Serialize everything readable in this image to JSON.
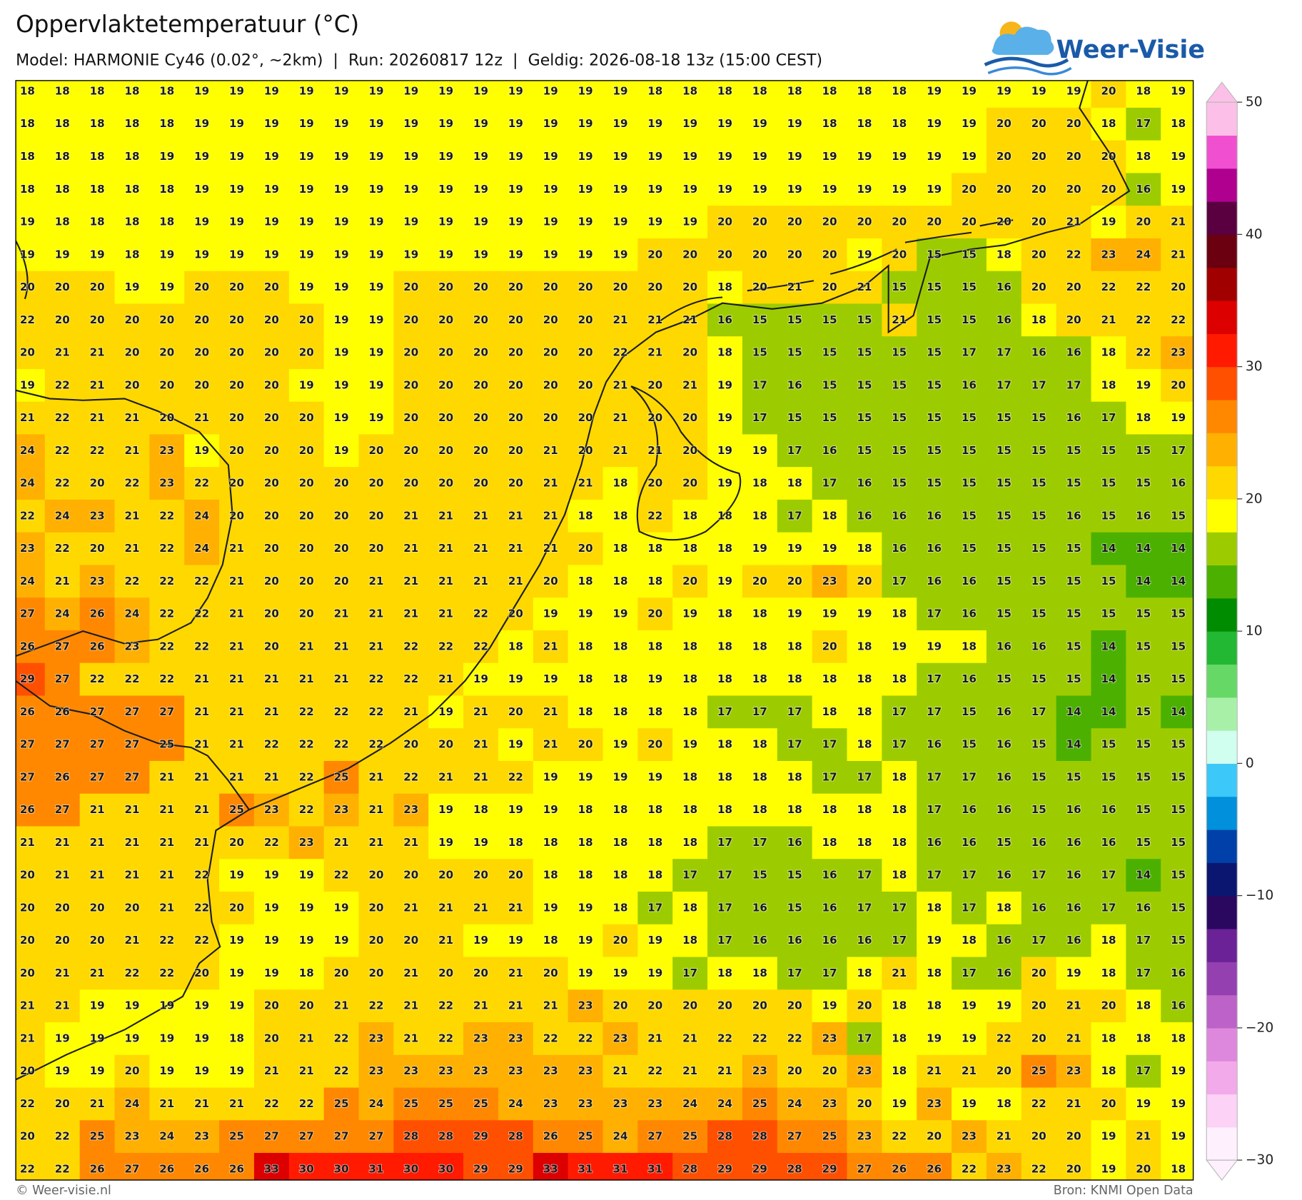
{
  "title": "Oppervlaktetemperatuur (°C)",
  "subtitle": "Model: HARMONIE Cy46 (0.02°, ~2km)  |  Run: 20260817 12z  |  Geldig: 2026-08-18 13z (15:00 CEST)",
  "logo": "Weer-Visie",
  "footer_left": "© Weer-visie.nl",
  "footer_right": "Bron: KNMI Open Data",
  "grid": {
    "values": [
      [
        18,
        18,
        18,
        18,
        18,
        19,
        19,
        19,
        19,
        19,
        19,
        19,
        19,
        19,
        19,
        19,
        19,
        19,
        18,
        18,
        18,
        18,
        18,
        18,
        18,
        18,
        19,
        19,
        19,
        19,
        19,
        20,
        18,
        19
      ],
      [
        18,
        18,
        18,
        18,
        18,
        19,
        19,
        19,
        19,
        19,
        19,
        19,
        19,
        19,
        19,
        19,
        19,
        19,
        19,
        19,
        19,
        19,
        19,
        18,
        18,
        18,
        19,
        19,
        20,
        20,
        20,
        18,
        17,
        18
      ],
      [
        18,
        18,
        18,
        18,
        19,
        19,
        19,
        19,
        19,
        19,
        19,
        19,
        19,
        19,
        19,
        19,
        19,
        19,
        19,
        19,
        19,
        19,
        19,
        19,
        19,
        19,
        19,
        19,
        20,
        20,
        20,
        20,
        18,
        19
      ],
      [
        18,
        18,
        18,
        18,
        18,
        19,
        19,
        19,
        19,
        19,
        19,
        19,
        19,
        19,
        19,
        19,
        19,
        19,
        19,
        19,
        19,
        19,
        19,
        19,
        19,
        19,
        19,
        20,
        20,
        20,
        20,
        20,
        16,
        19
      ],
      [
        19,
        18,
        18,
        18,
        18,
        19,
        19,
        19,
        19,
        19,
        19,
        19,
        19,
        19,
        19,
        19,
        19,
        19,
        19,
        19,
        20,
        20,
        20,
        20,
        20,
        20,
        20,
        20,
        20,
        20,
        21,
        19,
        20,
        21
      ],
      [
        19,
        19,
        19,
        18,
        19,
        19,
        19,
        19,
        19,
        19,
        19,
        19,
        19,
        19,
        19,
        19,
        19,
        19,
        20,
        20,
        20,
        20,
        20,
        20,
        19,
        20,
        15,
        15,
        18,
        20,
        22,
        23,
        24,
        21
      ],
      [
        20,
        20,
        20,
        19,
        19,
        20,
        20,
        20,
        19,
        19,
        19,
        20,
        20,
        20,
        20,
        20,
        20,
        20,
        20,
        20,
        18,
        20,
        21,
        20,
        21,
        15,
        15,
        15,
        16,
        20,
        20,
        22,
        22,
        20
      ],
      [
        22,
        20,
        20,
        20,
        20,
        20,
        20,
        20,
        20,
        19,
        19,
        20,
        20,
        20,
        20,
        20,
        20,
        21,
        21,
        21,
        16,
        15,
        15,
        15,
        15,
        21,
        15,
        15,
        16,
        18,
        20,
        21,
        22,
        22
      ],
      [
        20,
        21,
        21,
        20,
        20,
        20,
        20,
        20,
        20,
        19,
        19,
        20,
        20,
        20,
        20,
        20,
        20,
        22,
        21,
        20,
        18,
        15,
        15,
        15,
        15,
        15,
        15,
        17,
        17,
        16,
        16,
        18,
        22,
        23
      ],
      [
        19,
        22,
        21,
        20,
        20,
        20,
        20,
        20,
        19,
        19,
        19,
        20,
        20,
        20,
        20,
        20,
        20,
        21,
        20,
        21,
        19,
        17,
        16,
        15,
        15,
        15,
        15,
        16,
        17,
        17,
        17,
        18,
        19,
        20
      ],
      [
        21,
        22,
        21,
        21,
        20,
        21,
        20,
        20,
        20,
        19,
        19,
        20,
        20,
        20,
        20,
        20,
        20,
        21,
        20,
        20,
        19,
        17,
        15,
        15,
        15,
        15,
        15,
        15,
        15,
        15,
        16,
        17,
        18,
        19
      ],
      [
        24,
        22,
        22,
        21,
        23,
        19,
        20,
        20,
        20,
        19,
        20,
        20,
        20,
        20,
        20,
        21,
        20,
        21,
        21,
        20,
        19,
        19,
        17,
        16,
        15,
        15,
        15,
        15,
        15,
        15,
        15,
        15,
        15,
        17
      ],
      [
        24,
        22,
        20,
        22,
        23,
        22,
        20,
        20,
        20,
        20,
        20,
        20,
        20,
        20,
        20,
        21,
        21,
        18,
        20,
        20,
        19,
        18,
        18,
        17,
        16,
        15,
        15,
        15,
        15,
        15,
        15,
        15,
        15,
        16
      ],
      [
        22,
        24,
        23,
        21,
        22,
        24,
        20,
        20,
        20,
        20,
        20,
        21,
        21,
        21,
        21,
        21,
        18,
        18,
        22,
        18,
        18,
        18,
        17,
        18,
        16,
        16,
        16,
        15,
        15,
        15,
        16,
        15,
        16,
        15
      ],
      [
        23,
        22,
        20,
        21,
        22,
        24,
        21,
        20,
        20,
        20,
        20,
        21,
        21,
        21,
        21,
        21,
        20,
        18,
        18,
        18,
        18,
        19,
        19,
        19,
        18,
        16,
        16,
        15,
        15,
        15,
        15,
        14,
        14,
        14
      ],
      [
        24,
        21,
        23,
        22,
        22,
        22,
        21,
        20,
        20,
        20,
        21,
        21,
        21,
        21,
        21,
        20,
        18,
        18,
        18,
        20,
        19,
        20,
        20,
        23,
        20,
        17,
        16,
        16,
        15,
        15,
        15,
        15,
        14,
        14
      ],
      [
        27,
        24,
        26,
        24,
        22,
        22,
        21,
        20,
        20,
        21,
        21,
        21,
        21,
        22,
        20,
        19,
        19,
        19,
        20,
        19,
        18,
        18,
        19,
        19,
        19,
        18,
        17,
        16,
        15,
        15,
        15,
        15,
        15,
        15
      ],
      [
        26,
        27,
        26,
        23,
        22,
        22,
        21,
        20,
        21,
        21,
        21,
        22,
        22,
        22,
        18,
        21,
        18,
        18,
        18,
        18,
        18,
        18,
        18,
        20,
        18,
        19,
        19,
        18,
        16,
        16,
        15,
        14,
        15,
        15
      ],
      [
        29,
        27,
        22,
        22,
        22,
        21,
        21,
        21,
        21,
        21,
        22,
        22,
        21,
        19,
        19,
        19,
        18,
        18,
        19,
        18,
        18,
        18,
        18,
        18,
        18,
        18,
        17,
        16,
        15,
        15,
        15,
        14,
        15,
        15
      ],
      [
        26,
        26,
        27,
        27,
        27,
        21,
        21,
        21,
        22,
        22,
        22,
        21,
        19,
        21,
        20,
        21,
        18,
        18,
        18,
        18,
        17,
        17,
        17,
        18,
        18,
        17,
        17,
        15,
        16,
        17,
        14,
        14,
        15,
        14
      ],
      [
        27,
        27,
        27,
        27,
        25,
        21,
        21,
        22,
        22,
        22,
        22,
        20,
        20,
        21,
        19,
        21,
        20,
        19,
        20,
        19,
        18,
        18,
        17,
        17,
        18,
        17,
        16,
        15,
        16,
        15,
        14,
        15,
        15,
        15
      ],
      [
        27,
        26,
        27,
        27,
        21,
        21,
        21,
        21,
        22,
        25,
        21,
        22,
        21,
        21,
        22,
        19,
        19,
        19,
        19,
        18,
        18,
        18,
        18,
        17,
        17,
        18,
        17,
        17,
        16,
        15,
        15,
        15,
        15,
        15
      ],
      [
        26,
        27,
        21,
        21,
        21,
        21,
        25,
        23,
        22,
        23,
        21,
        23,
        19,
        18,
        19,
        19,
        18,
        18,
        18,
        18,
        18,
        18,
        18,
        18,
        18,
        18,
        17,
        16,
        16,
        15,
        16,
        16,
        15,
        15
      ],
      [
        21,
        21,
        21,
        21,
        21,
        21,
        20,
        22,
        23,
        21,
        21,
        21,
        19,
        19,
        18,
        18,
        18,
        18,
        18,
        18,
        17,
        17,
        16,
        18,
        18,
        18,
        16,
        16,
        15,
        16,
        16,
        16,
        15,
        15
      ],
      [
        20,
        21,
        21,
        21,
        21,
        22,
        19,
        19,
        19,
        22,
        20,
        20,
        20,
        20,
        20,
        18,
        18,
        18,
        18,
        17,
        17,
        15,
        15,
        16,
        17,
        18,
        17,
        17,
        16,
        17,
        16,
        17,
        14,
        15
      ],
      [
        20,
        20,
        20,
        20,
        21,
        22,
        20,
        19,
        19,
        19,
        20,
        21,
        21,
        21,
        21,
        19,
        19,
        18,
        17,
        18,
        17,
        16,
        15,
        16,
        17,
        17,
        18,
        17,
        18,
        16,
        16,
        17,
        16,
        15
      ],
      [
        20,
        20,
        20,
        21,
        22,
        22,
        19,
        19,
        19,
        19,
        20,
        20,
        21,
        19,
        19,
        18,
        19,
        20,
        19,
        18,
        17,
        16,
        16,
        16,
        16,
        17,
        19,
        18,
        16,
        17,
        16,
        18,
        17,
        15
      ],
      [
        20,
        21,
        21,
        22,
        22,
        20,
        19,
        19,
        18,
        20,
        20,
        21,
        20,
        20,
        21,
        20,
        19,
        19,
        19,
        17,
        18,
        18,
        17,
        17,
        18,
        21,
        18,
        17,
        16,
        20,
        19,
        18,
        17,
        16
      ],
      [
        21,
        21,
        19,
        19,
        19,
        19,
        19,
        20,
        20,
        21,
        22,
        21,
        22,
        21,
        21,
        21,
        23,
        20,
        20,
        20,
        20,
        20,
        20,
        19,
        20,
        18,
        18,
        19,
        19,
        20,
        21,
        20,
        18,
        16
      ],
      [
        21,
        19,
        19,
        19,
        19,
        19,
        18,
        20,
        21,
        22,
        23,
        21,
        22,
        23,
        23,
        22,
        22,
        23,
        21,
        21,
        22,
        22,
        22,
        23,
        17,
        18,
        19,
        19,
        22,
        20,
        21,
        18,
        18,
        18
      ],
      [
        20,
        19,
        19,
        20,
        19,
        19,
        19,
        21,
        21,
        22,
        23,
        23,
        23,
        23,
        23,
        23,
        23,
        21,
        22,
        21,
        21,
        23,
        20,
        20,
        23,
        18,
        21,
        21,
        20,
        25,
        23,
        18,
        17,
        19
      ],
      [
        22,
        20,
        21,
        24,
        21,
        21,
        21,
        22,
        22,
        25,
        24,
        25,
        25,
        25,
        24,
        23,
        23,
        23,
        23,
        24,
        24,
        25,
        24,
        23,
        20,
        19,
        23,
        19,
        18,
        22,
        21,
        20,
        19,
        19
      ],
      [
        20,
        22,
        25,
        23,
        24,
        23,
        25,
        27,
        27,
        27,
        27,
        28,
        28,
        29,
        28,
        26,
        25,
        24,
        27,
        25,
        28,
        28,
        27,
        25,
        23,
        22,
        20,
        23,
        21,
        20,
        20,
        19,
        21,
        19
      ],
      [
        22,
        22,
        26,
        27,
        26,
        26,
        26,
        33,
        30,
        30,
        31,
        30,
        30,
        29,
        29,
        33,
        31,
        31,
        31,
        28,
        29,
        29,
        28,
        29,
        27,
        26,
        26,
        22,
        23,
        22,
        20,
        19,
        20,
        18
      ]
    ]
  },
  "colorbar": {
    "lim": [
      -30,
      50
    ],
    "ticks": [
      {
        "value": -30,
        "label": "−30"
      },
      {
        "value": -20,
        "label": "−20"
      },
      {
        "value": -10,
        "label": "−10"
      },
      0,
      10,
      20,
      30,
      40,
      50
    ],
    "colors": [
      "#fff0fd",
      "#fcd2f6",
      "#f2aaea",
      "#dd88dc",
      "#bc62c8",
      "#9440b0",
      "#6a2296",
      "#2a0860",
      "#0a1670",
      "#0040a8",
      "#0090dc",
      "#3cc8f8",
      "#d0fff0",
      "#a8f0a8",
      "#66d866",
      "#22b833",
      "#008c00",
      "#4cb000",
      "#9ccc00",
      "#ffff00",
      "#ffd800",
      "#ffb000",
      "#ff8800",
      "#ff5000",
      "#ff1a00",
      "#dd0000",
      "#a00000",
      "#6a0010",
      "#5a0040",
      "#b00090",
      "#f050d0",
      "#fcc0e8"
    ]
  }
}
